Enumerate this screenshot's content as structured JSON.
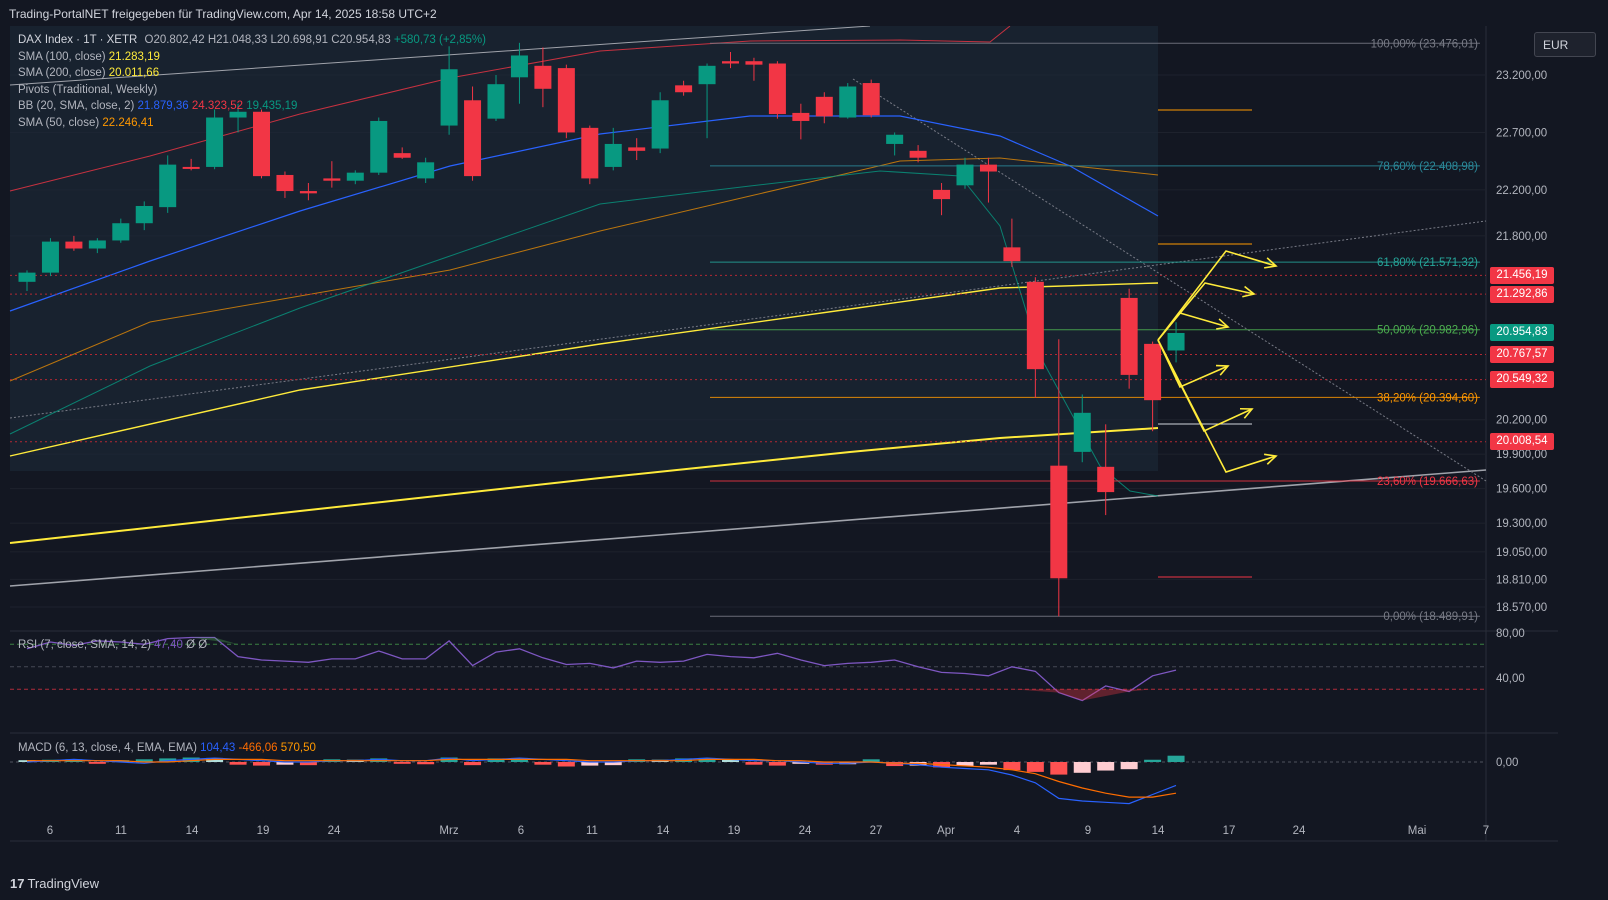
{
  "header": {
    "title": "Trading-PortalNET freigegeben für TradingView.com, Apr 14, 2025 18:58 UTC+2"
  },
  "footer": {
    "brand": "TradingView"
  },
  "currency": "EUR",
  "legend": {
    "symbol": "DAX Index · 1T · XETR",
    "ohlc": {
      "o": "O20.802,42",
      "h": "H21.048,33",
      "l": "L20.698,91",
      "c": "C20.954,83",
      "chg": "+580,73 (+2,85%)"
    },
    "sma100": {
      "label": "SMA (100, close)",
      "value": "21.283,19"
    },
    "sma200": {
      "label": "SMA (200, close)",
      "value": "20.011,66"
    },
    "pivots": {
      "label": "Pivots (Traditional, Weekly)"
    },
    "bb": {
      "label": "BB (20, SMA, close, 2)",
      "basis": "21.879,36",
      "upper": "24.323,52",
      "lower": "19.435,19"
    },
    "sma50": {
      "label": "SMA (50, close)",
      "value": "22.246,41"
    }
  },
  "rsi": {
    "label": "RSI (7, close, SMA, 14, 2)",
    "value": "47,40",
    "extra": "Ø Ø",
    "ticks": [
      "80,00",
      "40,00"
    ]
  },
  "macd": {
    "label": "MACD (6, 13, close, 4, EMA, EMA)",
    "macd": "104,43",
    "signal": "-466,06",
    "hist": "570,50",
    "ticks": [
      "0,00"
    ]
  },
  "price_labels": [
    {
      "text": "21.456,19",
      "value": 21456.19,
      "color": "#f23645"
    },
    {
      "text": "21.292,86",
      "value": 21292.86,
      "color": "#f23645"
    },
    {
      "text": "20.954,83",
      "value": 20954.83,
      "color": "#089981"
    },
    {
      "text": "20.767,57",
      "value": 20767.57,
      "color": "#f23645"
    },
    {
      "text": "20.549,32",
      "value": 20549.32,
      "color": "#f23645"
    },
    {
      "text": "20.008,54",
      "value": 20008.54,
      "color": "#f23645"
    }
  ],
  "colors": {
    "bull": "#089981",
    "bear": "#f23645",
    "sma100": "#ffeb3b",
    "sma200": "#ffeb3b",
    "bb_basis": "#2962ff",
    "bb_upper": "#f23645",
    "bb_lower": "#089981",
    "sma50": "#ff9800",
    "annot": "#ffeb3b"
  },
  "chart_data": {
    "type": "candlestick",
    "title": "DAX Index · 1T · XETR",
    "y_ticks": [
      "23.200,00",
      "22.700,00",
      "22.200,00",
      "21.800,00",
      "20.200,00",
      "19.900,00",
      "19.600,00",
      "19.300,00",
      "19.050,00",
      "18.810,00",
      "18.570,00"
    ],
    "y_tick_values": [
      23200,
      22700,
      22200,
      21800,
      20200,
      19900,
      19600,
      19300,
      19050,
      18810,
      18570
    ],
    "x_ticks": [
      "6",
      "11",
      "14",
      "19",
      "24",
      "Mrz",
      "6",
      "11",
      "14",
      "19",
      "24",
      "27",
      "Apr",
      "4",
      "9",
      "14",
      "17",
      "24",
      "Mai",
      "7"
    ],
    "fibonacci": [
      {
        "label": "100,00% (23.476,01)",
        "value": 23476.01
      },
      {
        "label": "78,60% (22.408,98)",
        "value": 22408.98
      },
      {
        "label": "61,80% (21.571,32)",
        "value": 21571.32
      },
      {
        "label": "50,00% (20.982,96)",
        "value": 20982.96
      },
      {
        "label": "38,20% (20.394,60)",
        "value": 20394.6
      },
      {
        "label": "23,60% (19.666,63)",
        "value": 19666.63
      },
      {
        "label": "0,00% (18.489,91)",
        "value": 18489.91
      }
    ],
    "candles": [
      {
        "o": 21400,
        "h": 21500,
        "l": 21320,
        "c": 21480
      },
      {
        "o": 21480,
        "h": 21780,
        "l": 21450,
        "c": 21750
      },
      {
        "o": 21750,
        "h": 21800,
        "l": 21670,
        "c": 21690
      },
      {
        "o": 21690,
        "h": 21780,
        "l": 21650,
        "c": 21760
      },
      {
        "o": 21760,
        "h": 21950,
        "l": 21740,
        "c": 21910
      },
      {
        "o": 21910,
        "h": 22100,
        "l": 21850,
        "c": 22060
      },
      {
        "o": 22050,
        "h": 22500,
        "l": 22000,
        "c": 22420
      },
      {
        "o": 22400,
        "h": 22470,
        "l": 22370,
        "c": 22390
      },
      {
        "o": 22400,
        "h": 22900,
        "l": 22380,
        "c": 22830
      },
      {
        "o": 22830,
        "h": 22950,
        "l": 22700,
        "c": 22880
      },
      {
        "o": 22880,
        "h": 22900,
        "l": 22300,
        "c": 22320
      },
      {
        "o": 22330,
        "h": 22360,
        "l": 22130,
        "c": 22190
      },
      {
        "o": 22190,
        "h": 22260,
        "l": 22110,
        "c": 22170
      },
      {
        "o": 22300,
        "h": 22450,
        "l": 22220,
        "c": 22280
      },
      {
        "o": 22280,
        "h": 22370,
        "l": 22250,
        "c": 22350
      },
      {
        "o": 22350,
        "h": 22830,
        "l": 22330,
        "c": 22800
      },
      {
        "o": 22520,
        "h": 22570,
        "l": 22470,
        "c": 22480
      },
      {
        "o": 22300,
        "h": 22480,
        "l": 22260,
        "c": 22440
      },
      {
        "o": 22760,
        "h": 23450,
        "l": 22680,
        "c": 23250
      },
      {
        "o": 22980,
        "h": 23100,
        "l": 22280,
        "c": 22320
      },
      {
        "o": 22820,
        "h": 23200,
        "l": 22800,
        "c": 23120
      },
      {
        "o": 23180,
        "h": 23480,
        "l": 22950,
        "c": 23370
      },
      {
        "o": 23280,
        "h": 23440,
        "l": 22920,
        "c": 23080
      },
      {
        "o": 23260,
        "h": 23290,
        "l": 22650,
        "c": 22700
      },
      {
        "o": 22740,
        "h": 22760,
        "l": 22250,
        "c": 22300
      },
      {
        "o": 22400,
        "h": 22740,
        "l": 22370,
        "c": 22600
      },
      {
        "o": 22570,
        "h": 22650,
        "l": 22460,
        "c": 22540
      },
      {
        "o": 22560,
        "h": 23050,
        "l": 22520,
        "c": 22980
      },
      {
        "o": 23110,
        "h": 23150,
        "l": 23020,
        "c": 23050
      },
      {
        "o": 23120,
        "h": 23300,
        "l": 22650,
        "c": 23280
      },
      {
        "o": 23320,
        "h": 23400,
        "l": 23260,
        "c": 23300
      },
      {
        "o": 23320,
        "h": 23350,
        "l": 23150,
        "c": 23290
      },
      {
        "o": 23300,
        "h": 23320,
        "l": 22820,
        "c": 22860
      },
      {
        "o": 22870,
        "h": 22950,
        "l": 22640,
        "c": 22800
      },
      {
        "o": 23010,
        "h": 23050,
        "l": 22780,
        "c": 22840
      },
      {
        "o": 22830,
        "h": 23130,
        "l": 22820,
        "c": 23100
      },
      {
        "o": 23130,
        "h": 23160,
        "l": 22830,
        "c": 22850
      },
      {
        "o": 22600,
        "h": 22700,
        "l": 22500,
        "c": 22680
      },
      {
        "o": 22540,
        "h": 22590,
        "l": 22440,
        "c": 22480
      },
      {
        "o": 22200,
        "h": 22260,
        "l": 21980,
        "c": 22120
      },
      {
        "o": 22240,
        "h": 22480,
        "l": 22210,
        "c": 22420
      },
      {
        "o": 22420,
        "h": 22480,
        "l": 22090,
        "c": 22360
      },
      {
        "o": 21700,
        "h": 21950,
        "l": 21530,
        "c": 21580
      },
      {
        "o": 21400,
        "h": 21440,
        "l": 20390,
        "c": 20640
      },
      {
        "o": 19800,
        "h": 20900,
        "l": 18489.91,
        "c": 18820
      },
      {
        "o": 19920,
        "h": 20420,
        "l": 19830,
        "c": 20260
      },
      {
        "o": 19790,
        "h": 20160,
        "l": 19370,
        "c": 19570
      },
      {
        "o": 21260,
        "h": 21340,
        "l": 20470,
        "c": 20590
      },
      {
        "o": 20860,
        "h": 20880,
        "l": 20100,
        "c": 20370
      },
      {
        "o": 20802.42,
        "h": 21048.33,
        "l": 20698.91,
        "c": 20954.83
      }
    ]
  }
}
